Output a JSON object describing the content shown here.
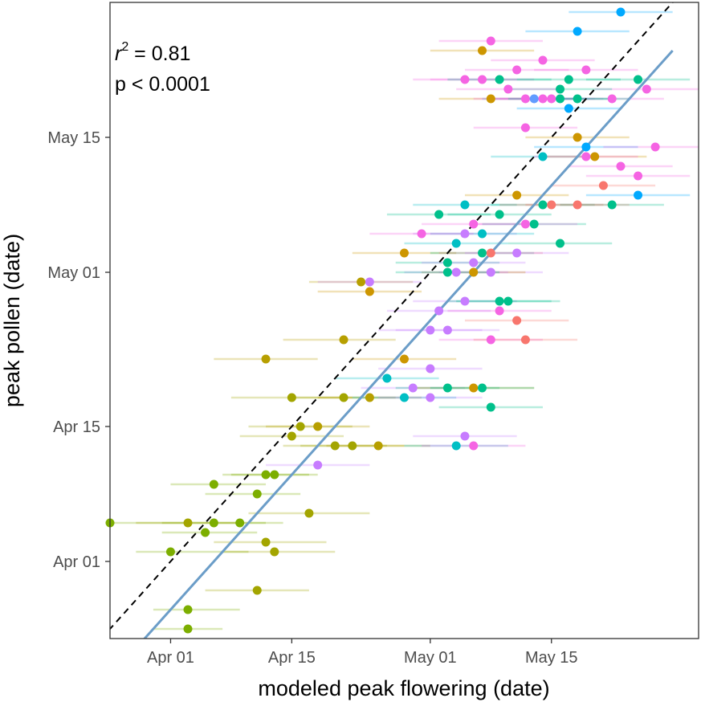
{
  "chart_data": {
    "type": "scatter",
    "title": "",
    "xlabel": "modeled peak flowering (date)",
    "ylabel": "peak pollen (date)",
    "x_unit": "date",
    "y_unit": "date",
    "xlim": [
      "2021-03-25",
      "2021-06-01"
    ],
    "ylim": [
      "2021-03-24",
      "2021-05-29"
    ],
    "x_ticks": [
      {
        "value": "2021-04-01",
        "label": "Apr 01"
      },
      {
        "value": "2021-04-15",
        "label": "Apr 15"
      },
      {
        "value": "2021-05-01",
        "label": "May 01"
      },
      {
        "value": "2021-05-15",
        "label": "May 15"
      }
    ],
    "y_ticks": [
      {
        "value": "2021-04-01",
        "label": "Apr 01"
      },
      {
        "value": "2021-04-15",
        "label": "Apr 15"
      },
      {
        "value": "2021-05-01",
        "label": "May 01"
      },
      {
        "value": "2021-05-15",
        "label": "May 15"
      }
    ],
    "grid": false,
    "legend": "none",
    "annotations": {
      "r2_prefix": "r",
      "r2_exponent": "2",
      "r2_value": " = 0.81",
      "p_text": "p <  0.0001"
    },
    "reference_line": {
      "kind": "1:1 line",
      "style": "dashed",
      "color": "#000000"
    },
    "fit_line": {
      "color": "#6b9dc8",
      "points": [
        {
          "x": "2021-03-28",
          "y": "2021-03-23"
        },
        {
          "x": "2021-05-29",
          "y": "2021-05-24"
        }
      ]
    },
    "points": [
      {
        "x": "2021-03-25",
        "y": "2021-04-05",
        "lo": "2021-03-25",
        "hi": "2021-04-04",
        "color": "#7cae00"
      },
      {
        "x": "2021-04-03",
        "y": "2021-03-25",
        "lo": "2021-03-30",
        "hi": "2021-04-07",
        "color": "#7cae00"
      },
      {
        "x": "2021-04-03",
        "y": "2021-03-27",
        "lo": "2021-03-30",
        "hi": "2021-04-09",
        "color": "#7cae00"
      },
      {
        "x": "2021-04-01",
        "y": "2021-04-02",
        "lo": "2021-03-28",
        "hi": "2021-04-10",
        "color": "#7cae00"
      },
      {
        "x": "2021-04-05",
        "y": "2021-04-04",
        "lo": "2021-03-31",
        "hi": "2021-04-11",
        "color": "#7cae00"
      },
      {
        "x": "2021-04-06",
        "y": "2021-04-05",
        "lo": "2021-03-31",
        "hi": "2021-04-12",
        "color": "#7cae00"
      },
      {
        "x": "2021-04-09",
        "y": "2021-04-05",
        "lo": "2021-04-04",
        "hi": "2021-04-14",
        "color": "#7cae00"
      },
      {
        "x": "2021-04-03",
        "y": "2021-04-05",
        "lo": "2021-03-28",
        "hi": "2021-04-09",
        "color": "#a3a500"
      },
      {
        "x": "2021-04-06",
        "y": "2021-04-09",
        "lo": "2021-04-01",
        "hi": "2021-04-12",
        "color": "#7cae00"
      },
      {
        "x": "2021-04-11",
        "y": "2021-04-08",
        "lo": "2021-04-05",
        "hi": "2021-04-16",
        "color": "#7cae00"
      },
      {
        "x": "2021-04-12",
        "y": "2021-04-10",
        "lo": "2021-04-07",
        "hi": "2021-04-17",
        "color": "#7cae00"
      },
      {
        "x": "2021-04-13",
        "y": "2021-04-10",
        "lo": "2021-04-08",
        "hi": "2021-04-18",
        "color": "#7cae00"
      },
      {
        "x": "2021-04-11",
        "y": "2021-03-29",
        "lo": "2021-04-05",
        "hi": "2021-04-17",
        "color": "#a3a500"
      },
      {
        "x": "2021-04-12",
        "y": "2021-04-03",
        "lo": "2021-04-06",
        "hi": "2021-04-19",
        "color": "#a3a500"
      },
      {
        "x": "2021-04-13",
        "y": "2021-04-02",
        "lo": "2021-04-07",
        "hi": "2021-04-20",
        "color": "#a3a500"
      },
      {
        "x": "2021-04-17",
        "y": "2021-04-06",
        "lo": "2021-04-10",
        "hi": "2021-04-24",
        "color": "#a3a500"
      },
      {
        "x": "2021-04-15",
        "y": "2021-04-14",
        "lo": "2021-04-09",
        "hi": "2021-04-21",
        "color": "#a3a500"
      },
      {
        "x": "2021-04-16",
        "y": "2021-04-15",
        "lo": "2021-04-10",
        "hi": "2021-04-22",
        "color": "#a3a500"
      },
      {
        "x": "2021-04-18",
        "y": "2021-04-15",
        "lo": "2021-04-12",
        "hi": "2021-04-24",
        "color": "#b79f00"
      },
      {
        "x": "2021-04-15",
        "y": "2021-04-18",
        "lo": "2021-04-08",
        "hi": "2021-04-22",
        "color": "#a3a500"
      },
      {
        "x": "2021-04-20",
        "y": "2021-04-13",
        "lo": "2021-04-14",
        "hi": "2021-04-26",
        "color": "#a3a500"
      },
      {
        "x": "2021-04-22",
        "y": "2021-04-13",
        "lo": "2021-04-16",
        "hi": "2021-04-28",
        "color": "#a3a500"
      },
      {
        "x": "2021-04-25",
        "y": "2021-04-13",
        "lo": "2021-04-19",
        "hi": "2021-04-31",
        "color": "#b79f00"
      },
      {
        "x": "2021-04-21",
        "y": "2021-04-18",
        "lo": "2021-04-15",
        "hi": "2021-04-27",
        "color": "#a3a500"
      },
      {
        "x": "2021-04-24",
        "y": "2021-04-18",
        "lo": "2021-04-18",
        "hi": "2021-04-30",
        "color": "#b79f00"
      },
      {
        "x": "2021-04-12",
        "y": "2021-04-22",
        "lo": "2021-04-06",
        "hi": "2021-04-18",
        "color": "#b79f00"
      },
      {
        "x": "2021-04-21",
        "y": "2021-04-24",
        "lo": "2021-04-14",
        "hi": "2021-04-27",
        "color": "#b79f00"
      },
      {
        "x": "2021-04-23",
        "y": "2021-04-30",
        "lo": "2021-04-17",
        "hi": "2021-04-29",
        "color": "#b79f00"
      },
      {
        "x": "2021-04-28",
        "y": "2021-05-03",
        "lo": "2021-04-22",
        "hi": "2021-05-04",
        "color": "#cd9600"
      },
      {
        "x": "2021-04-24",
        "y": "2021-04-30",
        "lo": "2021-04-18",
        "hi": "2021-04-30",
        "color": "#c77cff"
      },
      {
        "x": "2021-04-26",
        "y": "2021-04-20",
        "lo": "2021-04-20",
        "hi": "2021-05-02",
        "color": "#00bfc4"
      },
      {
        "x": "2021-04-28",
        "y": "2021-04-18",
        "lo": "2021-04-22",
        "hi": "2021-05-04",
        "color": "#00bfc4"
      },
      {
        "x": "2021-04-29",
        "y": "2021-04-19",
        "lo": "2021-04-23",
        "hi": "2021-05-05",
        "color": "#c77cff"
      },
      {
        "x": "2021-05-01",
        "y": "2021-04-18",
        "lo": "2021-04-25",
        "hi": "2021-05-07",
        "color": "#c77cff"
      },
      {
        "x": "2021-04-28",
        "y": "2021-04-22",
        "lo": "2021-04-22",
        "hi": "2021-05-04",
        "color": "#cd9600"
      },
      {
        "x": "2021-05-01",
        "y": "2021-04-21",
        "lo": "2021-04-25",
        "hi": "2021-05-07",
        "color": "#c77cff"
      },
      {
        "x": "2021-05-01",
        "y": "2021-04-25",
        "lo": "2021-04-25",
        "hi": "2021-05-07",
        "color": "#c77cff"
      },
      {
        "x": "2021-05-02",
        "y": "2021-04-27",
        "lo": "2021-04-26",
        "hi": "2021-05-08",
        "color": "#c77cff"
      },
      {
        "x": "2021-05-03",
        "y": "2021-04-25",
        "lo": "2021-04-27",
        "hi": "2021-05-09",
        "color": "#c77cff"
      },
      {
        "x": "2021-05-03",
        "y": "2021-04-19",
        "lo": "2021-04-27",
        "hi": "2021-05-09",
        "color": "#00c08b"
      },
      {
        "x": "2021-05-06",
        "y": "2021-04-19",
        "lo": "2021-04-29",
        "hi": "2021-05-13",
        "color": "#cd9600"
      },
      {
        "x": "2021-05-07",
        "y": "2021-04-19",
        "lo": "2021-05-01",
        "hi": "2021-05-13",
        "color": "#00c08b"
      },
      {
        "x": "2021-05-08",
        "y": "2021-04-17",
        "lo": "2021-05-02",
        "hi": "2021-05-14",
        "color": "#00c08b"
      },
      {
        "x": "2021-05-05",
        "y": "2021-04-14",
        "lo": "2021-04-29",
        "hi": "2021-05-11",
        "color": "#c77cff"
      },
      {
        "x": "2021-05-04",
        "y": "2021-04-13",
        "lo": "2021-04-28",
        "hi": "2021-05-10",
        "color": "#00bfc4"
      },
      {
        "x": "2021-05-06",
        "y": "2021-04-13",
        "lo": "2021-04-30",
        "hi": "2021-05-12",
        "color": "#f564e3"
      },
      {
        "x": "2021-04-18",
        "y": "2021-04-11",
        "lo": "2021-04-12",
        "hi": "2021-04-24",
        "color": "#c77cff"
      },
      {
        "x": "2021-04-24",
        "y": "2021-04-29",
        "lo": "2021-04-18",
        "hi": "2021-04-30",
        "color": "#cd9600"
      },
      {
        "x": "2021-05-03",
        "y": "2021-05-02",
        "lo": "2021-04-27",
        "hi": "2021-05-09",
        "color": "#00c08b"
      },
      {
        "x": "2021-05-05",
        "y": "2021-04-28",
        "lo": "2021-04-29",
        "hi": "2021-05-11",
        "color": "#c77cff"
      },
      {
        "x": "2021-05-07",
        "y": "2021-05-03",
        "lo": "2021-05-01",
        "hi": "2021-05-13",
        "color": "#00c08b"
      },
      {
        "x": "2021-05-08",
        "y": "2021-05-01",
        "lo": "2021-05-02",
        "hi": "2021-05-14",
        "color": "#c77cff"
      },
      {
        "x": "2021-05-10",
        "y": "2021-04-28",
        "lo": "2021-05-04",
        "hi": "2021-05-16",
        "color": "#00c08b"
      },
      {
        "x": "2021-05-11",
        "y": "2021-04-26",
        "lo": "2021-05-05",
        "hi": "2021-05-17",
        "color": "#f8766d"
      },
      {
        "x": "2021-05-09",
        "y": "2021-04-27",
        "lo": "2021-05-03",
        "hi": "2021-05-15",
        "color": "#f564e3"
      },
      {
        "x": "2021-05-09",
        "y": "2021-04-28",
        "lo": "2021-05-03",
        "hi": "2021-05-15",
        "color": "#00c08b"
      },
      {
        "x": "2021-05-08",
        "y": "2021-04-24",
        "lo": "2021-05-02",
        "hi": "2021-05-14",
        "color": "#f564e3"
      },
      {
        "x": "2021-05-12",
        "y": "2021-04-24",
        "lo": "2021-05-06",
        "hi": "2021-05-18",
        "color": "#f8766d"
      },
      {
        "x": "2021-05-05",
        "y": "2021-05-05",
        "lo": "2021-04-29",
        "hi": "2021-05-11",
        "color": "#c77cff"
      },
      {
        "x": "2021-05-06",
        "y": "2021-05-06",
        "lo": "2021-04-30",
        "hi": "2021-05-12",
        "color": "#f564e3"
      },
      {
        "x": "2021-05-08",
        "y": "2021-05-03",
        "lo": "2021-05-02",
        "hi": "2021-05-14",
        "color": "#f8766d"
      },
      {
        "x": "2021-05-11",
        "y": "2021-05-03",
        "lo": "2021-05-05",
        "hi": "2021-05-17",
        "color": "#c77cff"
      },
      {
        "x": "2021-05-13",
        "y": "2021-05-06",
        "lo": "2021-05-07",
        "hi": "2021-05-19",
        "color": "#00c08b"
      },
      {
        "x": "2021-05-11",
        "y": "2021-05-09",
        "lo": "2021-05-05",
        "hi": "2021-05-17",
        "color": "#cd9600"
      },
      {
        "x": "2021-05-05",
        "y": "2021-05-08",
        "lo": "2021-04-29",
        "hi": "2021-05-11",
        "color": "#00bfc4"
      },
      {
        "x": "2021-05-09",
        "y": "2021-05-07",
        "lo": "2021-05-03",
        "hi": "2021-05-15",
        "color": "#00c08b"
      },
      {
        "x": "2021-05-07",
        "y": "2021-05-05",
        "lo": "2021-05-01",
        "hi": "2021-05-13",
        "color": "#00bfc4"
      },
      {
        "x": "2021-05-12",
        "y": "2021-05-06",
        "lo": "2021-05-06",
        "hi": "2021-05-18",
        "color": "#f564e3"
      },
      {
        "x": "2021-05-14",
        "y": "2021-05-08",
        "lo": "2021-05-08",
        "hi": "2021-05-20",
        "color": "#00c08b"
      },
      {
        "x": "2021-05-15",
        "y": "2021-05-08",
        "lo": "2021-05-09",
        "hi": "2021-05-21",
        "color": "#f8766d"
      },
      {
        "x": "2021-05-16",
        "y": "2021-05-04",
        "lo": "2021-05-10",
        "hi": "2021-05-22",
        "color": "#00c08b"
      },
      {
        "x": "2021-05-22",
        "y": "2021-05-08",
        "lo": "2021-05-16",
        "hi": "2021-05-28",
        "color": "#00c08b"
      },
      {
        "x": "2021-05-18",
        "y": "2021-05-08",
        "lo": "2021-05-12",
        "hi": "2021-05-24",
        "color": "#f8766d"
      },
      {
        "x": "2021-05-12",
        "y": "2021-05-16",
        "lo": "2021-05-06",
        "hi": "2021-05-18",
        "color": "#f564e3"
      },
      {
        "x": "2021-05-14",
        "y": "2021-05-13",
        "lo": "2021-05-08",
        "hi": "2021-05-20",
        "color": "#00bfc4"
      },
      {
        "x": "2021-05-18",
        "y": "2021-05-15",
        "lo": "2021-05-12",
        "hi": "2021-05-24",
        "color": "#cd9600"
      },
      {
        "x": "2021-05-19",
        "y": "2021-05-14",
        "lo": "2021-05-13",
        "hi": "2021-05-25",
        "color": "#00a9ff"
      },
      {
        "x": "2021-05-20",
        "y": "2021-05-13",
        "lo": "2021-05-14",
        "hi": "2021-05-26",
        "color": "#cd9600"
      },
      {
        "x": "2021-05-19",
        "y": "2021-05-13",
        "lo": "2021-05-13",
        "hi": "2021-05-25",
        "color": "#f564e3"
      },
      {
        "x": "2021-05-21",
        "y": "2021-05-10",
        "lo": "2021-05-15",
        "hi": "2021-05-27",
        "color": "#f8766d"
      },
      {
        "x": "2021-05-23",
        "y": "2021-05-12",
        "lo": "2021-05-17",
        "hi": "2021-05-29",
        "color": "#f564e3"
      },
      {
        "x": "2021-05-25",
        "y": "2021-05-11",
        "lo": "2021-05-19",
        "hi": "2021-05-31",
        "color": "#f564e3"
      },
      {
        "x": "2021-05-25",
        "y": "2021-05-09",
        "lo": "2021-05-19",
        "hi": "2021-05-31",
        "color": "#00a9ff"
      },
      {
        "x": "2021-05-27",
        "y": "2021-05-14",
        "lo": "2021-05-21",
        "hi": "2021-06-01",
        "color": "#f564e3"
      },
      {
        "x": "2021-05-22",
        "y": "2021-05-19",
        "lo": "2021-05-16",
        "hi": "2021-05-28",
        "color": "#f564e3"
      },
      {
        "x": "2021-05-26",
        "y": "2021-05-20",
        "lo": "2021-05-20",
        "hi": "2021-06-01",
        "color": "#f564e3"
      },
      {
        "x": "2021-05-17",
        "y": "2021-05-18",
        "lo": "2021-05-11",
        "hi": "2021-05-23",
        "color": "#00a9ff"
      },
      {
        "x": "2021-05-16",
        "y": "2021-05-20",
        "lo": "2021-05-10",
        "hi": "2021-05-22",
        "color": "#00c08b"
      },
      {
        "x": "2021-05-10",
        "y": "2021-05-20",
        "lo": "2021-05-04",
        "hi": "2021-05-16",
        "color": "#f564e3"
      },
      {
        "x": "2021-05-08",
        "y": "2021-05-19",
        "lo": "2021-05-02",
        "hi": "2021-05-14",
        "color": "#cd9600"
      },
      {
        "x": "2021-05-05",
        "y": "2021-05-21",
        "lo": "2021-04-29",
        "hi": "2021-05-11",
        "color": "#f564e3"
      },
      {
        "x": "2021-05-07",
        "y": "2021-05-21",
        "lo": "2021-05-01",
        "hi": "2021-05-13",
        "color": "#f564e3"
      },
      {
        "x": "2021-05-09",
        "y": "2021-05-21",
        "lo": "2021-05-03",
        "hi": "2021-05-15",
        "color": "#00c08b"
      },
      {
        "x": "2021-05-11",
        "y": "2021-05-22",
        "lo": "2021-05-05",
        "hi": "2021-05-17",
        "color": "#f564e3"
      },
      {
        "x": "2021-05-12",
        "y": "2021-05-19",
        "lo": "2021-05-06",
        "hi": "2021-05-18",
        "color": "#f564e3"
      },
      {
        "x": "2021-05-13",
        "y": "2021-05-19",
        "lo": "2021-05-07",
        "hi": "2021-05-19",
        "color": "#619cff"
      },
      {
        "x": "2021-05-14",
        "y": "2021-05-19",
        "lo": "2021-05-08",
        "hi": "2021-05-20",
        "color": "#f564e3"
      },
      {
        "x": "2021-05-15",
        "y": "2021-05-19",
        "lo": "2021-05-09",
        "hi": "2021-05-21",
        "color": "#f564e3"
      },
      {
        "x": "2021-05-16",
        "y": "2021-05-19",
        "lo": "2021-05-10",
        "hi": "2021-05-22",
        "color": "#00c08b"
      },
      {
        "x": "2021-05-18",
        "y": "2021-05-19",
        "lo": "2021-05-12",
        "hi": "2021-05-24",
        "color": "#00c08b"
      },
      {
        "x": "2021-05-17",
        "y": "2021-05-21",
        "lo": "2021-05-11",
        "hi": "2021-05-23",
        "color": "#00c08b"
      },
      {
        "x": "2021-05-19",
        "y": "2021-05-22",
        "lo": "2021-05-13",
        "hi": "2021-05-25",
        "color": "#f564e3"
      },
      {
        "x": "2021-05-14",
        "y": "2021-05-23",
        "lo": "2021-05-08",
        "hi": "2021-05-20",
        "color": "#f564e3"
      },
      {
        "x": "2021-05-07",
        "y": "2021-05-24",
        "lo": "2021-05-01",
        "hi": "2021-05-13",
        "color": "#cd9600"
      },
      {
        "x": "2021-05-08",
        "y": "2021-05-25",
        "lo": "2021-05-02",
        "hi": "2021-05-14",
        "color": "#f564e3"
      },
      {
        "x": "2021-05-18",
        "y": "2021-05-26",
        "lo": "2021-05-12",
        "hi": "2021-05-24",
        "color": "#00a9ff"
      },
      {
        "x": "2021-05-23",
        "y": "2021-05-28",
        "lo": "2021-05-17",
        "hi": "2021-05-29",
        "color": "#00a9ff"
      },
      {
        "x": "2021-05-25",
        "y": "2021-05-21",
        "lo": "2021-05-19",
        "hi": "2021-05-31",
        "color": "#00c08b"
      },
      {
        "x": "2021-04-30",
        "y": "2021-05-05",
        "lo": "2021-04-24",
        "hi": "2021-05-06",
        "color": "#f564e3"
      },
      {
        "x": "2021-05-02",
        "y": "2021-05-07",
        "lo": "2021-04-26",
        "hi": "2021-05-08",
        "color": "#00c08b"
      },
      {
        "x": "2021-05-04",
        "y": "2021-05-04",
        "lo": "2021-04-28",
        "hi": "2021-05-10",
        "color": "#00bfc4"
      },
      {
        "x": "2021-05-06",
        "y": "2021-05-02",
        "lo": "2021-04-30",
        "hi": "2021-05-12",
        "color": "#c77cff"
      },
      {
        "x": "2021-05-06",
        "y": "2021-05-01",
        "lo": "2021-04-30",
        "hi": "2021-05-12",
        "color": "#cd9600"
      },
      {
        "x": "2021-05-04",
        "y": "2021-05-01",
        "lo": "2021-04-28",
        "hi": "2021-05-10",
        "color": "#c77cff"
      },
      {
        "x": "2021-05-03",
        "y": "2021-05-01",
        "lo": "2021-04-27",
        "hi": "2021-05-09",
        "color": "#00c08b"
      }
    ]
  }
}
